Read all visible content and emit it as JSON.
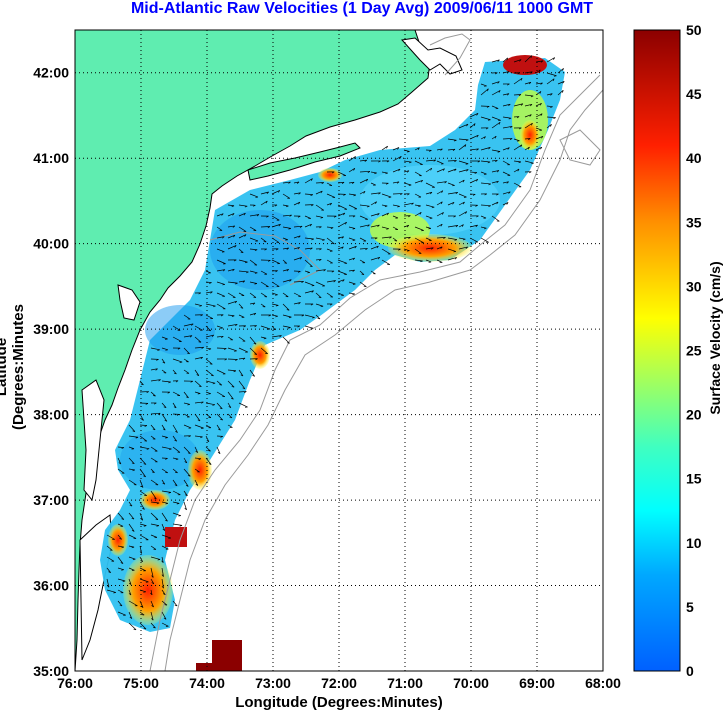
{
  "title": "Mid-Atlantic Raw Velocities (1 Day Avg) 2009/06/11 1000 GMT",
  "axes": {
    "xlabel": "Longitude (Degrees:Minutes)",
    "ylabel": "Latitude (Degrees:Minutes",
    "xticks": [
      "76:00",
      "75:00",
      "74:00",
      "73:00",
      "72:00",
      "71:00",
      "70:00",
      "69:00",
      "68:00"
    ],
    "yticks": [
      "42:00",
      "41:00",
      "40:00",
      "39:00",
      "38:00",
      "37:00",
      "36:00",
      "35:00"
    ],
    "xlim": [
      -76,
      -68
    ],
    "ylim": [
      35,
      42.5
    ]
  },
  "colorbar": {
    "label": "Surface Velocity (cm/s)",
    "ticks": [
      "50",
      "45",
      "40",
      "35",
      "30",
      "25",
      "20",
      "15",
      "10",
      "5",
      "0"
    ],
    "range": [
      0,
      50
    ]
  },
  "colors": {
    "land": "#5fedb0",
    "coast": "#000000",
    "bathymetry": "#9a9a9a",
    "title": "#0000ff"
  }
}
